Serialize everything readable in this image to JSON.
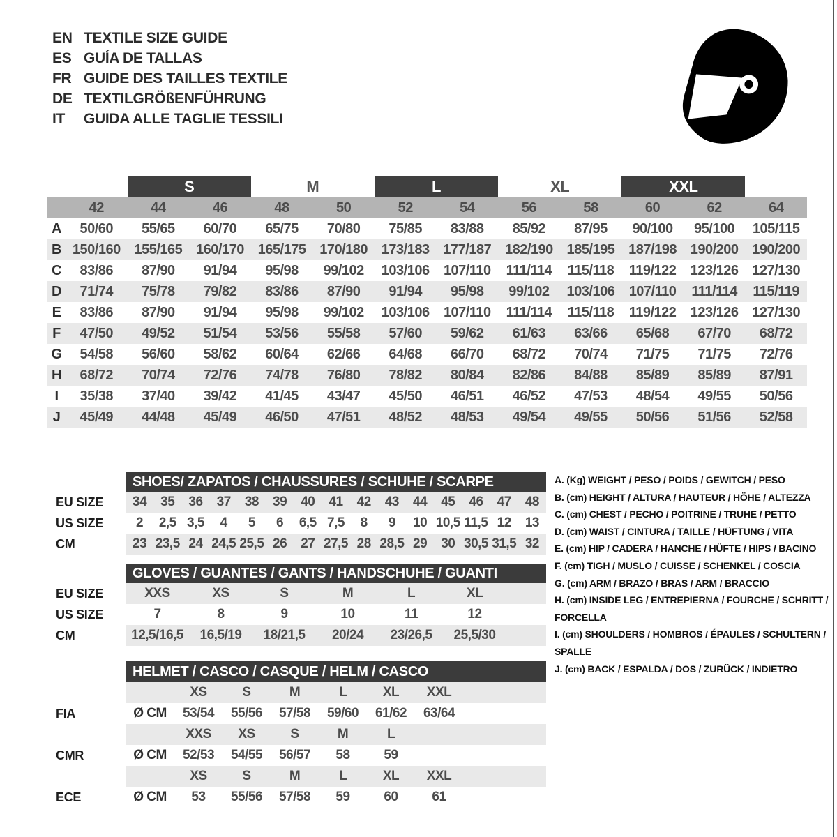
{
  "colors": {
    "bar_dark": "#3b3b3b",
    "size_box_dark": "#3f3f3f",
    "number_band_gray": "#b4b4b4",
    "row_stripe_gray": "#e9e9e9",
    "table_text": "#4c4c4c",
    "label_text": "#1e1e1e",
    "white": "#ffffff"
  },
  "icon": {
    "name": "racing-helmet-icon"
  },
  "header": {
    "languages": [
      {
        "code": "EN",
        "text": "TEXTILE SIZE GUIDE"
      },
      {
        "code": "ES",
        "text": "GUÍA DE TALLAS"
      },
      {
        "code": "FR",
        "text": "GUIDE DES TAILLES TEXTILE"
      },
      {
        "code": "DE",
        "text": "TEXTILGRÖßENFÜHRUNG"
      },
      {
        "code": "IT",
        "text": "GUIDA ALLE TAGLIE TESSILI"
      }
    ]
  },
  "clothing": {
    "sizes": [
      {
        "label": "S",
        "boxed": true
      },
      {
        "label": "M",
        "boxed": false
      },
      {
        "label": "L",
        "boxed": true
      },
      {
        "label": "XL",
        "boxed": false
      },
      {
        "label": "XXL",
        "boxed": true
      }
    ],
    "numbers": [
      "42",
      "44",
      "46",
      "48",
      "50",
      "52",
      "54",
      "56",
      "58",
      "60",
      "62",
      "64"
    ],
    "rows": [
      {
        "label": "A",
        "values": [
          "50/60",
          "55/65",
          "60/70",
          "65/75",
          "70/80",
          "75/85",
          "83/88",
          "85/92",
          "87/95",
          "90/100",
          "95/100",
          "105/115"
        ]
      },
      {
        "label": "B",
        "values": [
          "150/160",
          "155/165",
          "160/170",
          "165/175",
          "170/180",
          "173/183",
          "177/187",
          "182/190",
          "185/195",
          "187/198",
          "190/200",
          "190/200"
        ]
      },
      {
        "label": "C",
        "values": [
          "83/86",
          "87/90",
          "91/94",
          "95/98",
          "99/102",
          "103/106",
          "107/110",
          "111/114",
          "115/118",
          "119/122",
          "123/126",
          "127/130"
        ]
      },
      {
        "label": "D",
        "values": [
          "71/74",
          "75/78",
          "79/82",
          "83/86",
          "87/90",
          "91/94",
          "95/98",
          "99/102",
          "103/106",
          "107/110",
          "111/114",
          "115/119"
        ]
      },
      {
        "label": "E",
        "values": [
          "83/86",
          "87/90",
          "91/94",
          "95/98",
          "99/102",
          "103/106",
          "107/110",
          "111/114",
          "115/118",
          "119/122",
          "123/126",
          "127/130"
        ]
      },
      {
        "label": "F",
        "values": [
          "47/50",
          "49/52",
          "51/54",
          "53/56",
          "55/58",
          "57/60",
          "59/62",
          "61/63",
          "63/66",
          "65/68",
          "67/70",
          "68/72"
        ]
      },
      {
        "label": "G",
        "values": [
          "54/58",
          "56/60",
          "58/62",
          "60/64",
          "62/66",
          "64/68",
          "66/70",
          "68/72",
          "70/74",
          "71/75",
          "71/75",
          "72/76"
        ]
      },
      {
        "label": "H",
        "values": [
          "68/72",
          "70/74",
          "72/76",
          "74/78",
          "76/80",
          "78/82",
          "80/84",
          "82/86",
          "84/88",
          "85/89",
          "85/89",
          "87/91"
        ]
      },
      {
        "label": "I",
        "values": [
          "35/38",
          "37/40",
          "39/42",
          "41/45",
          "43/47",
          "45/50",
          "46/51",
          "46/52",
          "47/53",
          "48/54",
          "49/55",
          "50/56"
        ]
      },
      {
        "label": "J",
        "values": [
          "45/49",
          "44/48",
          "45/49",
          "46/50",
          "47/51",
          "48/52",
          "48/53",
          "49/54",
          "49/55",
          "50/56",
          "51/56",
          "52/58"
        ]
      }
    ]
  },
  "shoes": {
    "title": "SHOES/ ZAPATOS / CHAUSSURES / SCHUHE / SCARPE",
    "rows": [
      {
        "label": "EU SIZE",
        "values": [
          "34",
          "35",
          "36",
          "37",
          "38",
          "39",
          "40",
          "41",
          "42",
          "43",
          "44",
          "45",
          "46",
          "47",
          "48"
        ]
      },
      {
        "label": "US SIZE",
        "values": [
          "2",
          "2,5",
          "3,5",
          "4",
          "5",
          "6",
          "6,5",
          "7,5",
          "8",
          "9",
          "10",
          "10,5",
          "11,5",
          "12",
          "13"
        ]
      },
      {
        "label": "CM",
        "values": [
          "23",
          "23,5",
          "24",
          "24,5",
          "25,5",
          "26",
          "27",
          "27,5",
          "28",
          "28,5",
          "29",
          "30",
          "30,5",
          "31,5",
          "32"
        ]
      }
    ]
  },
  "gloves": {
    "title": "GLOVES / GUANTES / GANTS / HANDSCHUHE / GUANTI",
    "rows": [
      {
        "label": "EU SIZE",
        "values": [
          "XXS",
          "XS",
          "S",
          "M",
          "L",
          "XL"
        ]
      },
      {
        "label": "US SIZE",
        "values": [
          "7",
          "8",
          "9",
          "10",
          "11",
          "12"
        ]
      },
      {
        "label": "CM",
        "values": [
          "12,5/16,5",
          "16,5/19",
          "18/21,5",
          "20/24",
          "23/26,5",
          "25,5/30"
        ]
      }
    ]
  },
  "helmet": {
    "title": "HELMET / CASCO / CASQUE / HELM / CASCO",
    "groups": [
      {
        "label": "FIA",
        "unit": "Ø CM",
        "sizes": [
          "XS",
          "S",
          "M",
          "L",
          "XL",
          "XXL"
        ],
        "values": [
          "53/54",
          "55/56",
          "57/58",
          "59/60",
          "61/62",
          "63/64"
        ]
      },
      {
        "label": "CMR",
        "unit": "Ø CM",
        "sizes": [
          "XXS",
          "XS",
          "S",
          "M",
          "L"
        ],
        "values": [
          "52/53",
          "54/55",
          "56/57",
          "58",
          "59"
        ]
      },
      {
        "label": "ECE",
        "unit": "Ø CM",
        "sizes": [
          "XS",
          "S",
          "M",
          "L",
          "XL",
          "XXL"
        ],
        "values": [
          "53",
          "55/56",
          "57/58",
          "59",
          "60",
          "61"
        ]
      }
    ]
  },
  "legend": {
    "items": [
      "A. (Kg) WEIGHT / PESO / POIDS / GEWITCH / PESO",
      "B. (cm) HEIGHT / ALTURA / HAUTEUR / HÖHE / ALTEZZA",
      "C. (cm) CHEST / PECHO / POITRINE / TRUHE / PETTO",
      "D. (cm) WAIST / CINTURA / TAILLE / HÜFTUNG / VITA",
      "E. (cm) HIP / CADERA / HANCHE / HÜFTE / HIPS / BACINO",
      "F. (cm) TIGH / MUSLO / CUISSE / SCHENKEL / COSCIA",
      "G. (cm) ARM / BRAZO / BRAS / ARM / BRACCIO",
      "H. (cm) INSIDE LEG / ENTREPIERNA / FOURCHE / SCHRITT / FORCELLA",
      "I. (cm) SHOULDERS / HOMBROS / ÉPAULES / SCHULTERN / SPALLE",
      "J. (cm) BACK / ESPALDA / DOS / ZURÜCK / INDIETRO"
    ]
  }
}
